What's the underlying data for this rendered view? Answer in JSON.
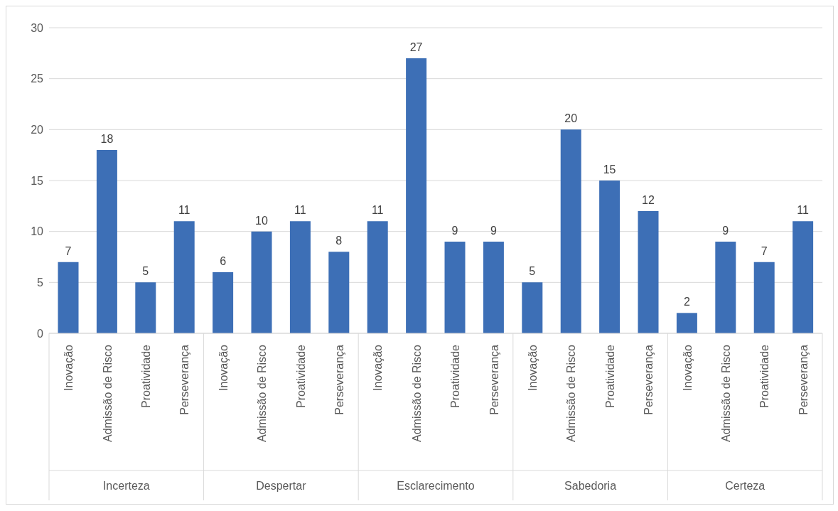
{
  "chart_data": {
    "type": "bar",
    "categories": [
      "Inovação",
      "Admissão de Risco",
      "Proatividade",
      "Perseverança",
      "Inovação",
      "Admissão de Risco",
      "Proatividade",
      "Perseverança",
      "Inovação",
      "Admissão de Risco",
      "Proatividade",
      "Perseverança",
      "Inovação",
      "Admissão de Risco",
      "Proatividade",
      "Perseverança",
      "Inovação",
      "Admissão de Risco",
      "Proatividade",
      "Perseverança"
    ],
    "values": [
      7,
      18,
      5,
      11,
      6,
      10,
      11,
      8,
      11,
      27,
      9,
      9,
      5,
      20,
      15,
      12,
      2,
      9,
      7,
      11
    ],
    "color": "#3d6fb6",
    "annotations": [
      "Incerteza",
      "Despertar",
      "Esclarecimento",
      "Sabedoria",
      "Certeza"
    ],
    "ylim": [
      0,
      30
    ],
    "yticks": [
      0,
      5,
      10,
      15,
      20,
      25,
      30
    ],
    "grid": "y",
    "data_labels": true,
    "legend": false
  }
}
